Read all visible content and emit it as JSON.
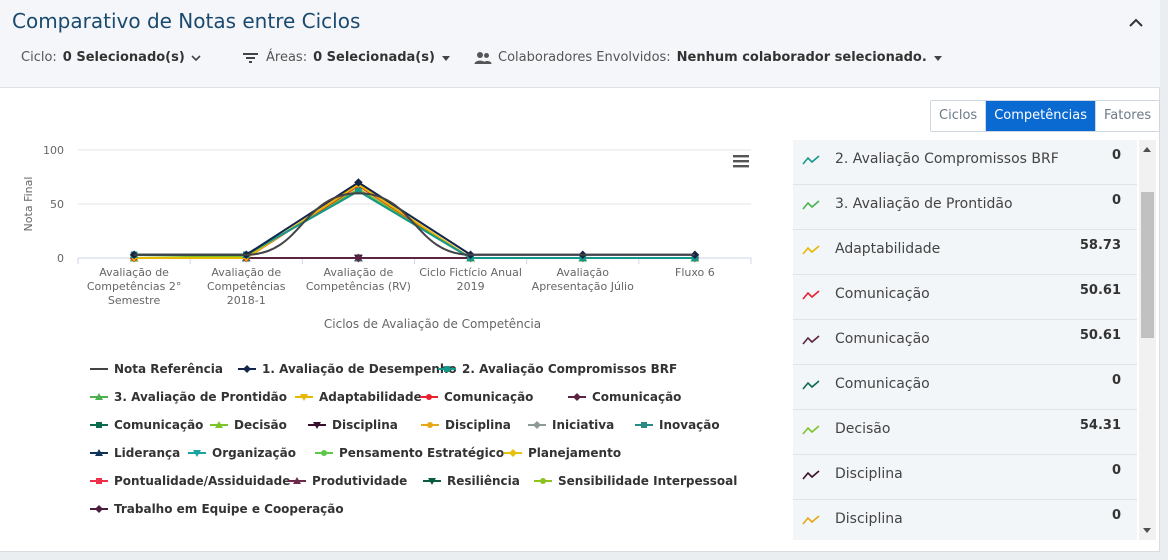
{
  "header": {
    "title": "Comparativo de Notas entre Ciclos",
    "filters": {
      "ciclo_label": "Ciclo:",
      "ciclo_value": "0 Selecionado(s)",
      "areas_label": "Áreas:",
      "areas_value": "0 Selecionada(s)",
      "colab_label": "Colaboradores Envolvidos:",
      "colab_value": "Nenhum colaborador selecionado."
    }
  },
  "tabs": [
    {
      "label": "Ciclos",
      "active": false
    },
    {
      "label": "Competências",
      "active": true
    },
    {
      "label": "Fatores",
      "active": false
    }
  ],
  "chart_data": {
    "type": "line",
    "ylabel": "Nota Final",
    "xlabel": "Ciclos de Avaliação de Competência",
    "ylim": [
      0,
      100
    ],
    "yticks": [
      "100",
      "50",
      "0"
    ],
    "categories": [
      [
        "Avaliação de",
        "Competências 2°",
        "Semestre"
      ],
      [
        "Avaliação de",
        "Competências",
        "2018-1"
      ],
      [
        "Avaliação de",
        "Competências (RV)"
      ],
      [
        "Ciclo Fictício Anual",
        "2019"
      ],
      [
        "Avaliação",
        "Apresentação Júlio"
      ],
      [
        "Fluxo 6"
      ]
    ],
    "series": [
      {
        "name": "Nota Referência",
        "color": "#434348",
        "marker": "none",
        "values": [
          3,
          3,
          60,
          3,
          3,
          3
        ]
      },
      {
        "name": "1. Avaliação de Desempenho",
        "color": "#14254a",
        "marker": "diamond",
        "values": [
          3,
          3,
          70,
          3,
          3,
          3
        ]
      },
      {
        "name": "2. Avaliação Compromissos BRF",
        "color": "#16998a",
        "marker": "square",
        "values": [
          3,
          3,
          62,
          0,
          0,
          0
        ]
      },
      {
        "name": "3. Avaliação de Prontidão",
        "color": "#4caf50",
        "marker": "triangle",
        "values": [
          3,
          3,
          62,
          0,
          0,
          0
        ]
      },
      {
        "name": "Adaptabilidade",
        "color": "#e6b800",
        "marker": "triangle-down",
        "values": [
          0,
          0,
          68,
          0,
          0,
          0
        ]
      },
      {
        "name": "Comunicação",
        "color": "#e8212f",
        "marker": "circle",
        "values": [
          0,
          0,
          67,
          0,
          0,
          0
        ]
      },
      {
        "name": "Comunicação",
        "color": "#5b2443",
        "marker": "diamond",
        "values": [
          0,
          0,
          0,
          0,
          0,
          0
        ]
      },
      {
        "name": "Comunicação",
        "color": "#0b6b4e",
        "marker": "square",
        "values": [
          3,
          3,
          62,
          0,
          0,
          0
        ]
      },
      {
        "name": "Decisão",
        "color": "#7cc42a",
        "marker": "triangle",
        "values": [
          0,
          2,
          64,
          0,
          0,
          0
        ]
      },
      {
        "name": "Disciplina",
        "color": "#3a0f2c",
        "marker": "triangle-down",
        "values": [
          0,
          0,
          0,
          0,
          0,
          0
        ]
      },
      {
        "name": "Disciplina",
        "color": "#e6a817",
        "marker": "circle",
        "values": [
          0,
          0,
          67,
          0,
          0,
          0
        ]
      },
      {
        "name": "Iniciativa",
        "color": "#8b9a95",
        "marker": "diamond",
        "values": [
          0,
          0,
          0,
          0,
          0,
          0
        ]
      },
      {
        "name": "Inovação",
        "color": "#2a8a86",
        "marker": "square",
        "values": [
          0,
          0,
          0,
          0,
          0,
          0
        ]
      },
      {
        "name": "Liderança",
        "color": "#10335a",
        "marker": "triangle",
        "values": [
          0,
          0,
          0,
          0,
          0,
          0
        ]
      },
      {
        "name": "Organização",
        "color": "#1aa3a3",
        "marker": "triangle-down",
        "values": [
          0,
          0,
          0,
          0,
          0,
          0
        ]
      },
      {
        "name": "Pensamento Estratégico",
        "color": "#5cc84a",
        "marker": "circle",
        "values": [
          0,
          0,
          0,
          0,
          0,
          0
        ]
      },
      {
        "name": "Planejamento",
        "color": "#e8c10a",
        "marker": "diamond",
        "values": [
          0,
          0,
          0,
          0,
          0,
          0
        ]
      },
      {
        "name": "Pontualidade/Assiduidade",
        "color": "#f0304a",
        "marker": "square",
        "values": [
          0,
          0,
          0,
          0,
          0,
          0
        ]
      },
      {
        "name": "Produtividade",
        "color": "#6b2a4a",
        "marker": "triangle",
        "values": [
          0,
          0,
          0,
          0,
          0,
          0
        ]
      },
      {
        "name": "Resiliência",
        "color": "#0b5a3e",
        "marker": "triangle-down",
        "values": [
          0,
          0,
          0,
          0,
          0,
          0
        ]
      },
      {
        "name": "Sensibilidade Interpessoal",
        "color": "#8cc21e",
        "marker": "circle",
        "values": [
          0,
          0,
          0,
          0,
          0,
          0
        ]
      },
      {
        "name": "Trabalho em Equipe e Cooperação",
        "color": "#4a1d3d",
        "marker": "diamond",
        "values": [
          0,
          0,
          0,
          0,
          0,
          0
        ]
      }
    ]
  },
  "right_list": [
    {
      "name": "2. Avaliação Compromissos BRF",
      "value": "0",
      "color": "#16998a"
    },
    {
      "name": "3. Avaliação de Prontidão",
      "value": "0",
      "color": "#4caf50"
    },
    {
      "name": "Adaptabilidade",
      "value": "58.73",
      "color": "#e6b800"
    },
    {
      "name": "Comunicação",
      "value": "50.61",
      "color": "#e8212f"
    },
    {
      "name": "Comunicação",
      "value": "50.61",
      "color": "#5b2443"
    },
    {
      "name": "Comunicação",
      "value": "0",
      "color": "#0b6b4e"
    },
    {
      "name": "Decisão",
      "value": "54.31",
      "color": "#7cc42a"
    },
    {
      "name": "Disciplina",
      "value": "0",
      "color": "#3a0f2c"
    },
    {
      "name": "Disciplina",
      "value": "0",
      "color": "#e6a817"
    }
  ]
}
